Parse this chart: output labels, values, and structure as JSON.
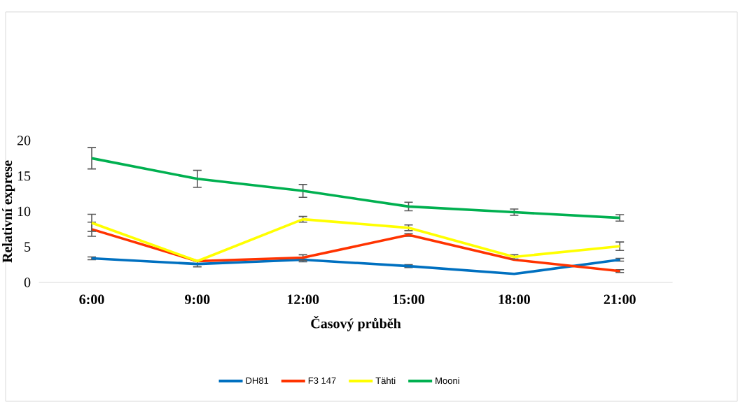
{
  "chart_data": {
    "type": "line",
    "xlabel": "Časový průběh",
    "ylabel": "Relativní exprese",
    "categories": [
      "6:00",
      "9:00",
      "12:00",
      "15:00",
      "18:00",
      "21:00"
    ],
    "series": [
      {
        "name": "DH81",
        "color": "#0070c0",
        "values": [
          3.4,
          2.6,
          3.2,
          2.3,
          1.2,
          3.2
        ],
        "errors": [
          0.2,
          0.4,
          0.3,
          0.2,
          null,
          0.2
        ]
      },
      {
        "name": "F3 147",
        "color": "#ff3300",
        "values": [
          7.5,
          3.0,
          3.5,
          6.7,
          3.2,
          1.6
        ],
        "errors": [
          1.0,
          null,
          0.4,
          0.2,
          null,
          0.2
        ]
      },
      {
        "name": "Tähti",
        "color": "#ffff00",
        "values": [
          8.4,
          3.0,
          8.9,
          7.7,
          3.6,
          5.1
        ],
        "errors": [
          1.2,
          null,
          0.4,
          0.4,
          0.3,
          0.6
        ]
      },
      {
        "name": "Mooni",
        "color": "#00b050",
        "values": [
          17.5,
          14.6,
          12.9,
          10.7,
          9.9,
          9.1
        ],
        "errors": [
          1.5,
          1.2,
          0.9,
          0.6,
          0.45,
          0.45
        ]
      }
    ],
    "ylim": [
      0,
      20
    ],
    "yticks": [
      0,
      5,
      10,
      15,
      20
    ],
    "legend": "bottom"
  }
}
